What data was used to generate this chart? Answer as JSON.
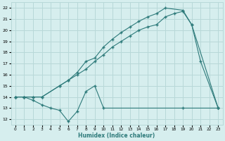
{
  "title": "",
  "xlabel": "Humidex (Indice chaleur)",
  "ylabel": "",
  "bg_color": "#d6eeee",
  "grid_color": "#b8d8d8",
  "line_color": "#2d7a7a",
  "xlim": [
    -0.5,
    23.5
  ],
  "ylim": [
    11.5,
    22.5
  ],
  "xticks": [
    0,
    1,
    2,
    3,
    4,
    5,
    6,
    7,
    8,
    9,
    10,
    11,
    12,
    13,
    14,
    15,
    16,
    17,
    18,
    19,
    20,
    21,
    22,
    23
  ],
  "yticks": [
    12,
    13,
    14,
    15,
    16,
    17,
    18,
    19,
    20,
    21,
    22
  ],
  "line1_x": [
    0,
    1,
    2,
    3,
    4,
    5,
    6,
    7,
    8,
    9,
    10,
    19,
    23
  ],
  "line1_y": [
    14,
    14,
    13.7,
    13.3,
    13.0,
    12.8,
    11.8,
    12.7,
    14.5,
    15.0,
    13.0,
    13.0,
    13.0
  ],
  "line2_x": [
    0,
    1,
    2,
    3,
    5,
    6,
    7,
    8,
    9,
    10,
    11,
    12,
    13,
    14,
    15,
    16,
    17,
    19,
    20,
    21,
    23
  ],
  "line2_y": [
    14,
    14,
    14,
    14,
    15.0,
    15.5,
    16.2,
    17.2,
    17.5,
    18.5,
    19.2,
    19.8,
    20.3,
    20.8,
    21.2,
    21.5,
    22.0,
    21.8,
    20.5,
    17.2,
    13.0
  ],
  "line3_x": [
    0,
    1,
    2,
    3,
    5,
    6,
    7,
    8,
    9,
    10,
    11,
    12,
    13,
    14,
    15,
    16,
    17,
    18,
    19,
    20,
    23
  ],
  "line3_y": [
    14,
    14,
    14,
    14,
    15.0,
    15.5,
    16.0,
    16.5,
    17.2,
    17.8,
    18.5,
    19.0,
    19.5,
    20.0,
    20.3,
    20.5,
    21.2,
    21.5,
    21.7,
    20.5,
    13.0
  ]
}
